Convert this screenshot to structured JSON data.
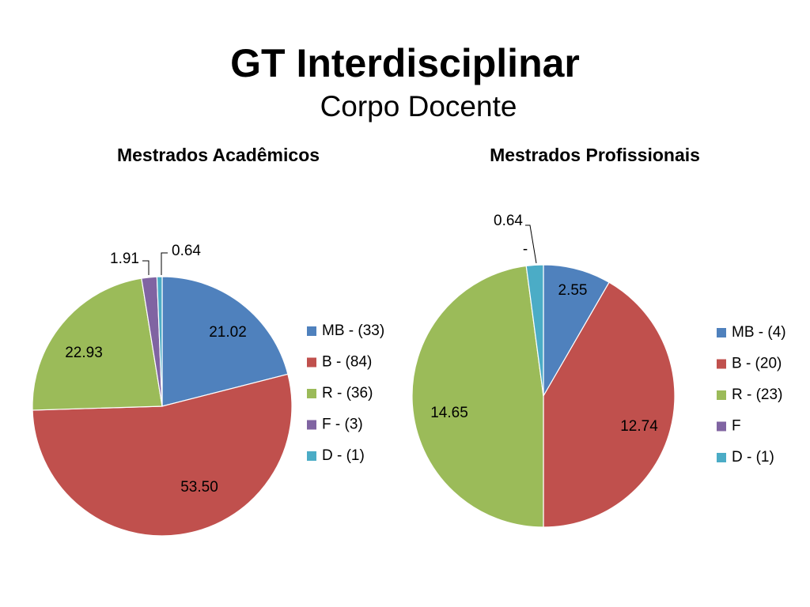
{
  "slide": {
    "title": "GT Interdisciplinar",
    "subtitle": "Corpo Docente"
  },
  "chart_data": [
    {
      "type": "pie",
      "title": "Mestrados Acadêmicos",
      "categories": [
        "MB - (33)",
        "B - (84)",
        "R - (36)",
        "F - (3)",
        "D - (1)"
      ],
      "values": [
        21.02,
        53.5,
        22.93,
        1.91,
        0.64
      ],
      "data_labels": [
        "21.02",
        "53.50",
        "22.93",
        "1.91",
        "0.64"
      ],
      "colors": [
        "#4F81BD",
        "#C0504D",
        "#9BBB59",
        "#8064A2",
        "#4BACC6"
      ],
      "start_angle": "12 o'clock, clockwise",
      "legend": "right"
    },
    {
      "type": "pie",
      "title": "Mestrados Profissionais",
      "categories": [
        "MB - (4)",
        "B - (20)",
        "R - (23)",
        "F",
        "D - (1)"
      ],
      "values": [
        2.55,
        12.74,
        14.65,
        0,
        0.64
      ],
      "data_labels": [
        "2.55",
        "12.74",
        "14.65",
        "-",
        "0.64"
      ],
      "colors": [
        "#4F81BD",
        "#C0504D",
        "#9BBB59",
        "#8064A2",
        "#4BACC6"
      ],
      "start_angle": "12 o'clock, clockwise",
      "legend": "right"
    }
  ]
}
